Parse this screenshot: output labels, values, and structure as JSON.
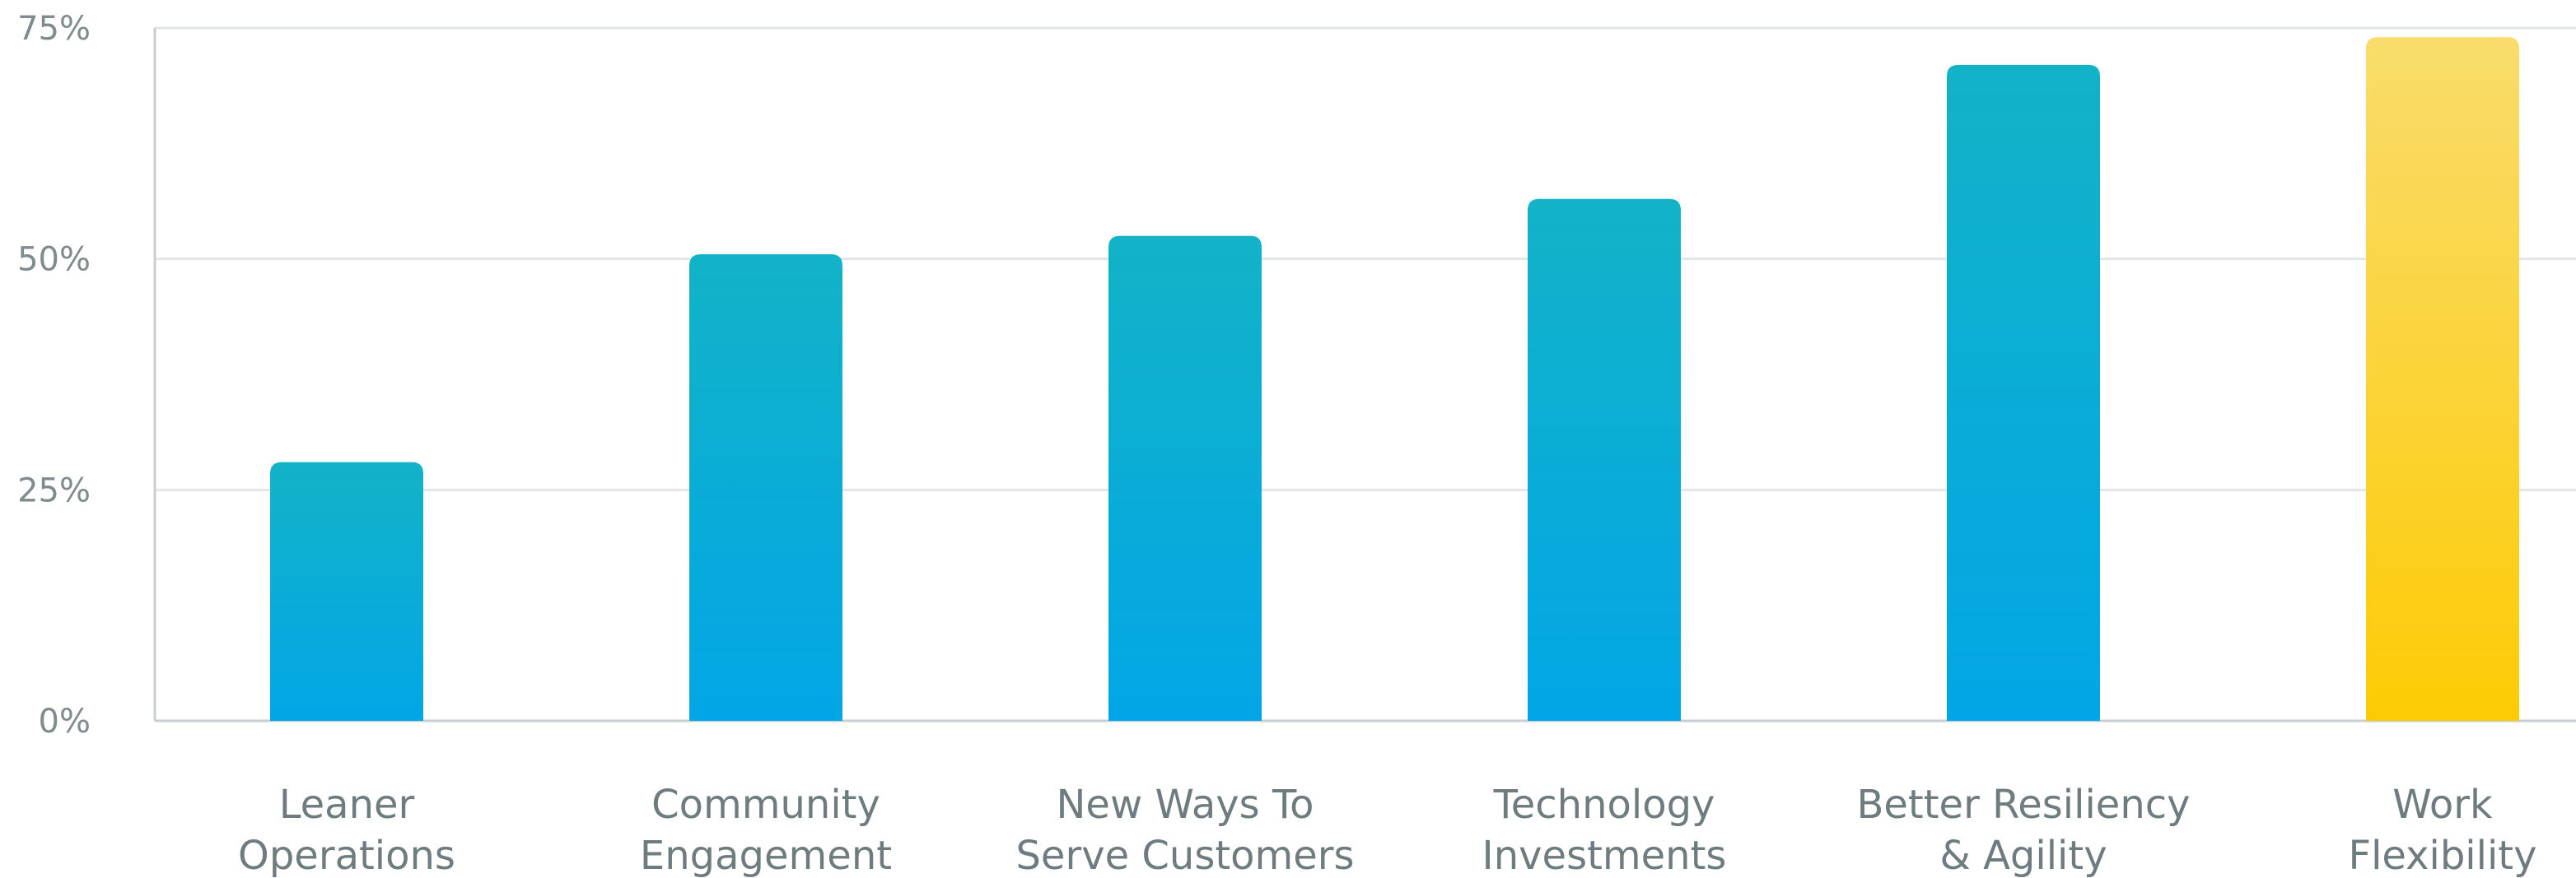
{
  "chart_data": {
    "type": "bar",
    "title": "",
    "xlabel": "",
    "ylabel": "",
    "ylim": [
      0,
      75
    ],
    "y_ticks": [
      0,
      25,
      50,
      75
    ],
    "y_tick_labels": [
      "0%",
      "25%",
      "50%",
      "75%"
    ],
    "grid": true,
    "legend": "none",
    "categories": [
      [
        "Leaner",
        "Operations"
      ],
      [
        "Community",
        "Engagement"
      ],
      [
        "New Ways To",
        "Serve Customers"
      ],
      [
        "Technology",
        "Investments"
      ],
      [
        "Better Resiliency",
        "& Agility"
      ],
      [
        "Work",
        "Flexibility"
      ]
    ],
    "values": [
      28,
      50.5,
      52.5,
      56.5,
      71,
      74
    ],
    "bar_colors": [
      {
        "top": "#12b3c7",
        "bottom": "#02a6e6"
      },
      {
        "top": "#12b3c7",
        "bottom": "#02a6e6"
      },
      {
        "top": "#12b3c7",
        "bottom": "#02a6e6"
      },
      {
        "top": "#12b3c7",
        "bottom": "#02a6e6"
      },
      {
        "top": "#12b3c7",
        "bottom": "#02a6e6"
      },
      {
        "top": "#f9dc6c",
        "bottom": "#fdcb04"
      }
    ]
  }
}
